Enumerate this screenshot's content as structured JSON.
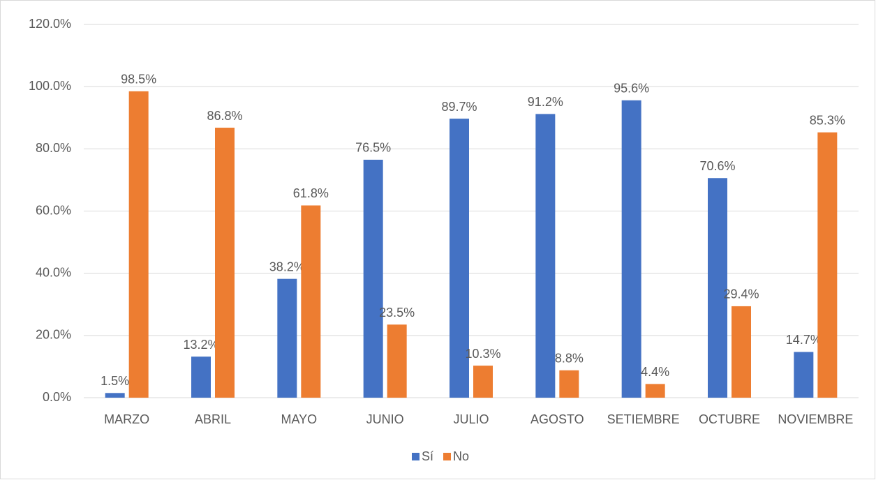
{
  "chart_data": {
    "type": "bar",
    "categories": [
      "MARZO",
      "ABRIL",
      "MAYO",
      "JUNIO",
      "JULIO",
      "AGOSTO",
      "SETIEMBRE",
      "OCTUBRE",
      "NOVIEMBRE"
    ],
    "series": [
      {
        "name": "Sí",
        "color": "#4472c4",
        "values": [
          1.5,
          13.2,
          38.2,
          76.5,
          89.7,
          91.2,
          95.6,
          70.6,
          14.7
        ],
        "value_labels": [
          "1.5%",
          "13.2%",
          "38.2%",
          "76.5%",
          "89.7%",
          "91.2%",
          "95.6%",
          "70.6%",
          "14.7%"
        ]
      },
      {
        "name": "No",
        "color": "#ed7d31",
        "values": [
          98.5,
          86.8,
          61.8,
          23.5,
          10.3,
          8.8,
          4.4,
          29.4,
          85.3
        ],
        "value_labels": [
          "98.5%",
          "86.8%",
          "61.8%",
          "23.5%",
          "10.3%",
          "8.8%",
          "4.4%",
          "29.4%",
          "85.3%"
        ]
      }
    ],
    "ylim": [
      0,
      120
    ],
    "yticks": [
      {
        "value": 0,
        "label": "0.0%"
      },
      {
        "value": 20,
        "label": "20.0%"
      },
      {
        "value": 40,
        "label": "40.0%"
      },
      {
        "value": 60,
        "label": "60.0%"
      },
      {
        "value": 80,
        "label": "80.0%"
      },
      {
        "value": 100,
        "label": "100.0%"
      },
      {
        "value": 120,
        "label": "120.0%"
      }
    ],
    "grid": true,
    "legend": "bottom"
  }
}
